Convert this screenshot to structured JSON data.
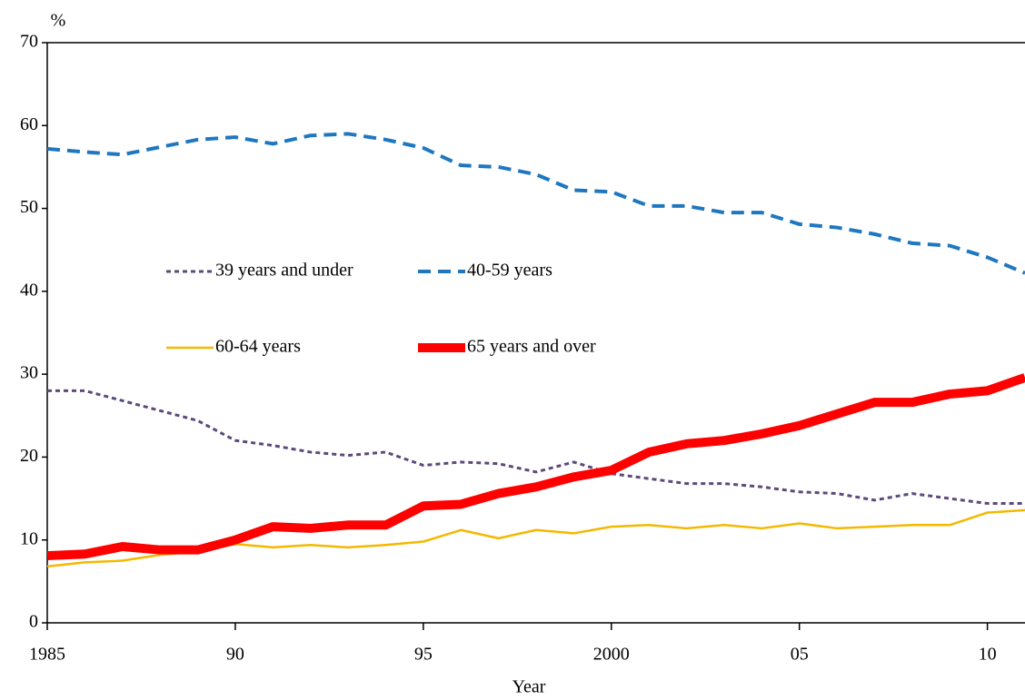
{
  "chart_data": {
    "type": "line",
    "y_unit": "%",
    "x_label": "Year",
    "x": [
      1985,
      1986,
      1987,
      1988,
      1989,
      1990,
      1991,
      1992,
      1993,
      1994,
      1995,
      1996,
      1997,
      1998,
      1999,
      2000,
      2001,
      2002,
      2003,
      2004,
      2005,
      2006,
      2007,
      2008,
      2009,
      2010,
      2011
    ],
    "xlim": [
      1985,
      2011
    ],
    "xticks": [
      1985,
      {
        "value": 1990,
        "label": "90"
      },
      {
        "value": 1995,
        "label": "95"
      },
      2000,
      {
        "value": 2005,
        "label": "05"
      },
      {
        "value": 2010,
        "label": "10"
      }
    ],
    "ylim": [
      0,
      70
    ],
    "yticks": [
      0,
      10,
      20,
      30,
      40,
      50,
      60,
      70
    ],
    "series": [
      {
        "name": "39 years and under",
        "color": "#5b4a7a",
        "style": "dotted",
        "values": [
          28,
          28,
          26.8,
          25.6,
          24.4,
          22,
          21.4,
          20.6,
          20.2,
          20.6,
          19,
          19.4,
          19.2,
          18.2,
          19.4,
          18,
          17.4,
          16.8,
          16.8,
          16.4,
          15.8,
          15.6,
          14.8,
          15.6,
          15,
          14.4,
          14.4
        ]
      },
      {
        "name": "40-59 years",
        "color": "#1f77c0",
        "style": "dashed",
        "values": [
          57.2,
          56.8,
          56.5,
          57.4,
          58.3,
          58.6,
          57.8,
          58.8,
          59,
          58.3,
          57.3,
          55.2,
          55,
          54.1,
          52.2,
          52,
          50.3,
          50.3,
          49.5,
          49.5,
          48.1,
          47.7,
          46.9,
          45.8,
          45.5,
          44.1,
          42.2
        ]
      },
      {
        "name": "60-64 years",
        "color": "#f5b800",
        "style": "solid",
        "values": [
          6.8,
          7.3,
          7.5,
          8.2,
          8.6,
          9.5,
          9.1,
          9.4,
          9.1,
          9.4,
          9.8,
          11.2,
          10.2,
          11.2,
          10.8,
          11.6,
          11.8,
          11.4,
          11.8,
          11.4,
          12,
          11.4,
          11.6,
          11.8,
          11.8,
          13.3,
          13.6
        ]
      },
      {
        "name": "65 years and over",
        "color": "#ff0000",
        "style": "thick",
        "values": [
          8.1,
          8.3,
          9.2,
          8.8,
          8.8,
          10,
          11.6,
          11.4,
          11.8,
          11.8,
          14.1,
          14.3,
          15.6,
          16.4,
          17.6,
          18.4,
          20.6,
          21.6,
          22,
          22.8,
          23.8,
          25.2,
          26.6,
          26.6,
          27.6,
          28,
          29.6
        ]
      }
    ]
  }
}
